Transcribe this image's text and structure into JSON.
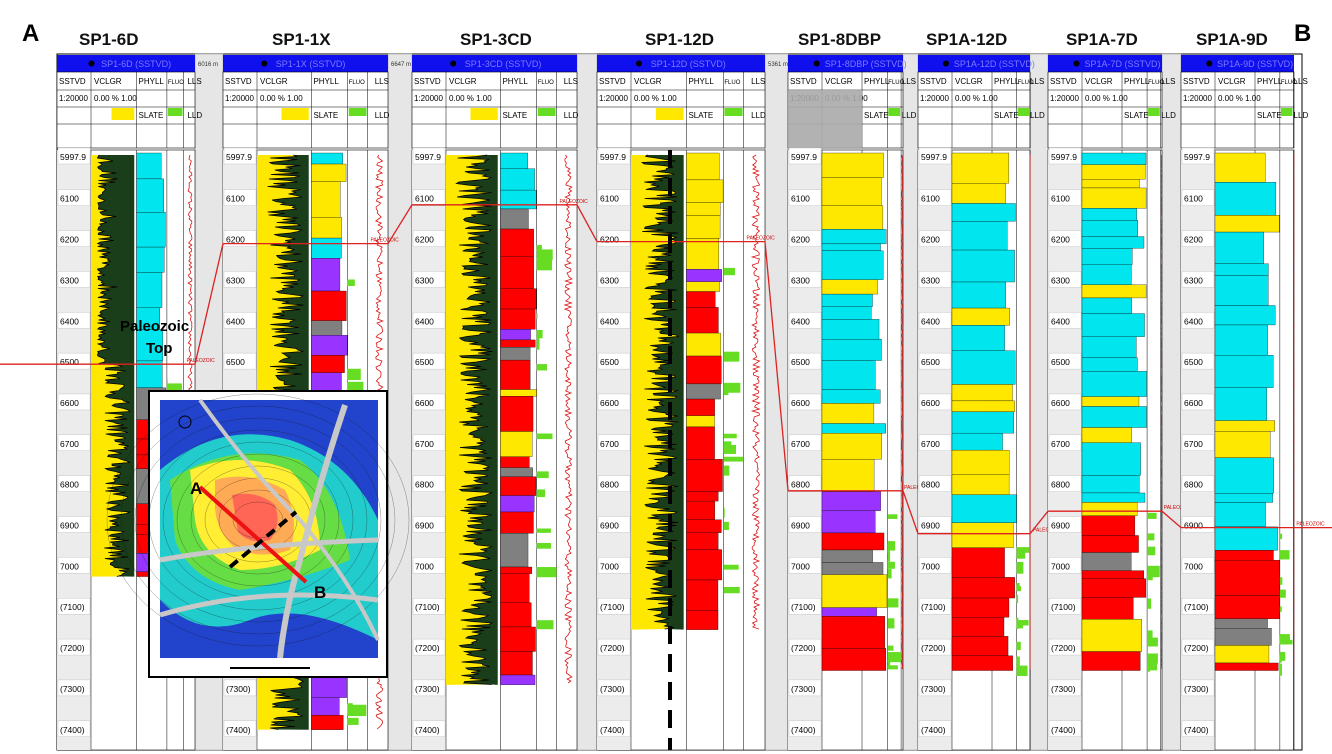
{
  "section": {
    "start_label": "A",
    "end_label": "B",
    "annotation_line1": "Paleozoic",
    "annotation_line2": "Top"
  },
  "header_columns": {
    "depth": "SSTVD",
    "gr": "VCLGR",
    "lith": "PHYLL",
    "fluo": "FLUO",
    "res1": "LLS",
    "res2": "LLD",
    "lith2": "SLATE",
    "scale_a": "1:2000",
    "scale_b": "1:20000",
    "gr_range": "0.00 % 1.00",
    "top_marker": "PALEOZOIC"
  },
  "wells": [
    {
      "name": "SP1-6D",
      "spacing": "6016 m",
      "top_depth": 6505,
      "td": 7025
    },
    {
      "name": "SP1-1X",
      "spacing": "6647 m",
      "top_depth": 6210,
      "td": 7400
    },
    {
      "name": "SP1-3CD",
      "spacing": "",
      "top_depth": 6115,
      "td": 7290
    },
    {
      "name": "SP1-12D",
      "spacing": "5361 m",
      "top_depth": 6205,
      "td": 7155
    },
    {
      "name": "SP1-8DBP",
      "spacing": "",
      "top_depth": 6815,
      "td": 7255
    },
    {
      "name": "SP1A-12D",
      "spacing": "",
      "top_depth": 6920,
      "td": 7255
    },
    {
      "name": "SP1A-7D",
      "spacing": "",
      "top_depth": 6865,
      "td": 7255
    },
    {
      "name": "SP1A-9D",
      "spacing": "",
      "top_depth": 6905,
      "td": 7255
    }
  ],
  "depth_ticks": [
    "5997.9",
    "6100",
    "6200",
    "6300",
    "6400",
    "6500",
    "6600",
    "6700",
    "6800",
    "6900",
    "7000",
    "(7100)",
    "(7200)",
    "(7300)",
    "(7400)"
  ],
  "legend": {
    "lith_colors": {
      "sand": "#ffe800",
      "shale": "#00e5ee",
      "phyllite": "#ff0000",
      "slate": "#808080",
      "quartzite": "#9933ff",
      "fluo": "#66dd22",
      "gr_fill": "#1a3d1a"
    }
  },
  "map_inset": {
    "label_a": "A",
    "label_b": "B"
  }
}
